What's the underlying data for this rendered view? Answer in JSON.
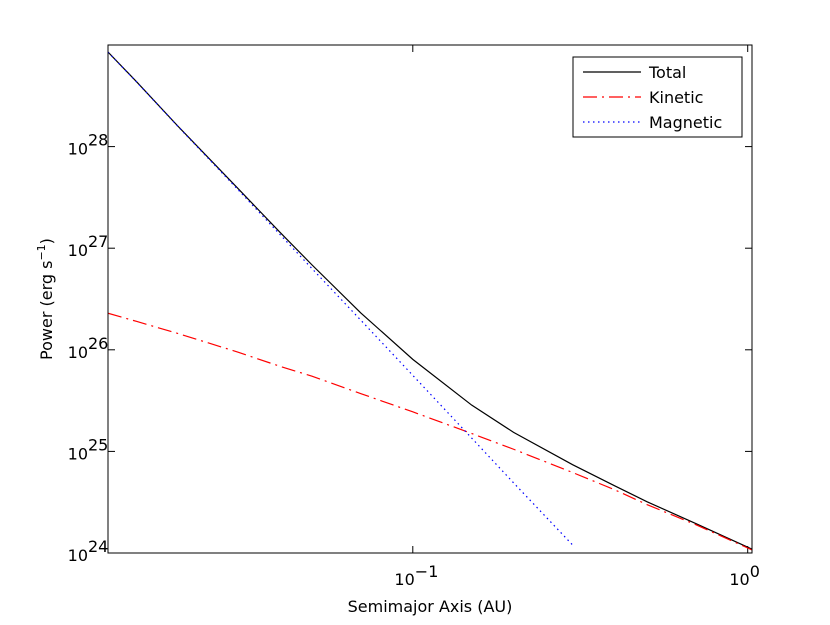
{
  "chart_data": {
    "type": "line",
    "x_label": "Semimajor Axis (AU)",
    "y_label": {
      "text": "Power (erg s",
      "superscript": "−1",
      "suffix": ")"
    },
    "x": [
      0.0123,
      0.015,
      0.02,
      0.03,
      0.04,
      0.05,
      0.07,
      0.1,
      0.15,
      0.2,
      0.3,
      0.4,
      0.5,
      0.7,
      1.0,
      1.03
    ],
    "series": [
      {
        "name": "Total",
        "color": "#000000",
        "dash": "solid",
        "values": [
          8.52e+28,
          4.32e+28,
          1.56e+28,
          3.9e+27,
          1.45e+27,
          6.85e+26,
          2.3e+26,
          8.05e+25,
          2.85e+25,
          1.54e+25,
          7.4e+24,
          4.6e+24,
          3.2e+24,
          1.95e+24,
          1.14e+24,
          1.09e+24
        ]
      },
      {
        "name": "Kinetic",
        "color": "#ff0000",
        "dash": "dashdot",
        "values": [
          2.29e+26,
          1.9e+26,
          1.44e+26,
          9.5e+25,
          6.9e+25,
          5.5e+25,
          3.7e+25,
          2.45e+25,
          1.5e+25,
          1.05e+25,
          6.2e+24,
          4.2e+24,
          3e+24,
          1.9e+24,
          1.12e+24,
          1.07e+24
        ]
      },
      {
        "name": "Magnetic",
        "color": "#0000ff",
        "dash": "dotted",
        "values": [
          8.5e+28,
          4.3e+28,
          1.55e+28,
          3.8e+27,
          1.38e+27,
          6.3e+26,
          1.95e+26,
          5.6e+25,
          1.35e+25,
          4.9e+24,
          1.2e+24,
          null,
          null,
          null,
          null,
          null
        ]
      }
    ],
    "xscale": "log",
    "yscale": "log",
    "xlim": [
      0.0123,
      1.03
    ],
    "ylim": [
      1e+24,
      1e+29
    ],
    "xticks": [
      {
        "value": 0.1,
        "label": "10",
        "exponent": "−1"
      },
      {
        "value": 1,
        "label": "10",
        "exponent": "0"
      }
    ],
    "yticks": [
      {
        "value": 1e+24,
        "label": "10",
        "exponent": "24"
      },
      {
        "value": 1e+25,
        "label": "10",
        "exponent": "25"
      },
      {
        "value": 1e+26,
        "label": "10",
        "exponent": "26"
      },
      {
        "value": 1e+27,
        "label": "10",
        "exponent": "27"
      },
      {
        "value": 1e+28,
        "label": "10",
        "exponent": "28"
      }
    ],
    "legend": "upper right"
  }
}
